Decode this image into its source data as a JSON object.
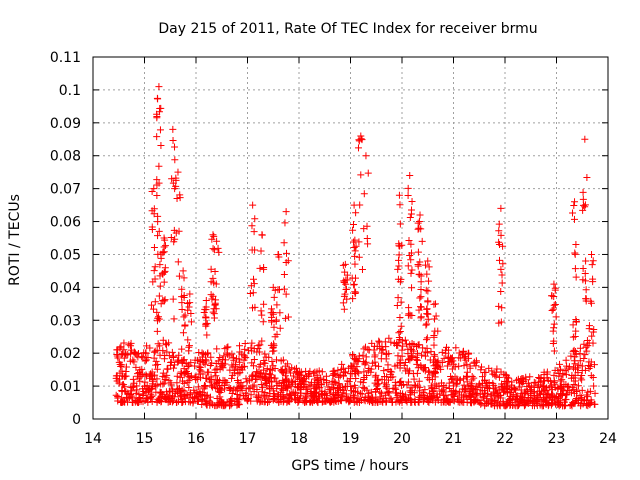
{
  "chart_data": {
    "type": "scatter",
    "title": "Day 215 of 2011, Rate Of TEC Index for receiver brmu",
    "xlabel": "GPS time / hours",
    "ylabel": "ROTI / TECUs",
    "xlim": [
      14,
      24
    ],
    "ylim": [
      0,
      0.11
    ],
    "x_ticks": [
      "14",
      "15",
      "16",
      "17",
      "18",
      "19",
      "20",
      "21",
      "22",
      "23",
      "24"
    ],
    "y_ticks": [
      "0",
      "0.01",
      "0.02",
      "0.03",
      "0.04",
      "0.05",
      "0.06",
      "0.07",
      "0.08",
      "0.09",
      "0.1",
      "0.11"
    ],
    "grid": true,
    "marker": "+",
    "color": "#ff0000",
    "baseline": {
      "x": [
        14.45,
        14.7,
        15.0,
        15.3,
        15.6,
        15.9,
        16.2,
        16.5,
        16.8,
        17.1,
        17.4,
        17.7,
        18.0,
        18.3,
        18.6,
        18.9,
        19.2,
        19.5,
        19.8,
        20.1,
        20.4,
        20.7,
        21.0,
        21.3,
        21.6,
        21.9,
        22.2,
        22.5,
        22.8,
        23.1,
        23.4,
        23.75
      ],
      "lower": [
        0.005,
        0.005,
        0.005,
        0.005,
        0.005,
        0.005,
        0.004,
        0.004,
        0.004,
        0.005,
        0.005,
        0.005,
        0.005,
        0.005,
        0.005,
        0.005,
        0.005,
        0.005,
        0.005,
        0.005,
        0.005,
        0.005,
        0.005,
        0.005,
        0.004,
        0.004,
        0.004,
        0.004,
        0.004,
        0.004,
        0.004,
        0.004
      ],
      "upper": [
        0.022,
        0.024,
        0.022,
        0.025,
        0.022,
        0.021,
        0.02,
        0.022,
        0.022,
        0.024,
        0.02,
        0.018,
        0.015,
        0.015,
        0.014,
        0.018,
        0.022,
        0.024,
        0.026,
        0.025,
        0.022,
        0.02,
        0.024,
        0.02,
        0.016,
        0.015,
        0.012,
        0.013,
        0.016,
        0.018,
        0.022,
        0.026
      ],
      "points_per_segment": 60
    },
    "spikes": [
      {
        "x": 15.28,
        "y_min": 0.025,
        "y_max": 0.101,
        "count": 34
      },
      {
        "x": 15.18,
        "y_min": 0.03,
        "y_max": 0.07,
        "count": 14
      },
      {
        "x": 15.38,
        "y_min": 0.035,
        "y_max": 0.055,
        "count": 16
      },
      {
        "x": 15.55,
        "y_min": 0.03,
        "y_max": 0.088,
        "count": 12
      },
      {
        "x": 15.65,
        "y_min": 0.04,
        "y_max": 0.075,
        "count": 10
      },
      {
        "x": 15.75,
        "y_min": 0.025,
        "y_max": 0.045,
        "count": 12
      },
      {
        "x": 15.88,
        "y_min": 0.02,
        "y_max": 0.038,
        "count": 10
      },
      {
        "x": 16.2,
        "y_min": 0.025,
        "y_max": 0.036,
        "count": 12
      },
      {
        "x": 16.33,
        "y_min": 0.03,
        "y_max": 0.056,
        "count": 14
      },
      {
        "x": 16.4,
        "y_min": 0.03,
        "y_max": 0.054,
        "count": 10
      },
      {
        "x": 17.1,
        "y_min": 0.03,
        "y_max": 0.065,
        "count": 12
      },
      {
        "x": 17.28,
        "y_min": 0.02,
        "y_max": 0.056,
        "count": 12
      },
      {
        "x": 17.5,
        "y_min": 0.02,
        "y_max": 0.04,
        "count": 18
      },
      {
        "x": 17.6,
        "y_min": 0.025,
        "y_max": 0.05,
        "count": 10
      },
      {
        "x": 17.75,
        "y_min": 0.03,
        "y_max": 0.063,
        "count": 10
      },
      {
        "x": 18.9,
        "y_min": 0.033,
        "y_max": 0.047,
        "count": 16
      },
      {
        "x": 19.07,
        "y_min": 0.035,
        "y_max": 0.065,
        "count": 18
      },
      {
        "x": 19.2,
        "y_min": 0.045,
        "y_max": 0.086,
        "count": 10
      },
      {
        "x": 19.3,
        "y_min": 0.05,
        "y_max": 0.08,
        "count": 6
      },
      {
        "x": 19.95,
        "y_min": 0.025,
        "y_max": 0.068,
        "count": 20
      },
      {
        "x": 20.15,
        "y_min": 0.03,
        "y_max": 0.074,
        "count": 20
      },
      {
        "x": 20.35,
        "y_min": 0.03,
        "y_max": 0.062,
        "count": 22
      },
      {
        "x": 20.5,
        "y_min": 0.02,
        "y_max": 0.048,
        "count": 20
      },
      {
        "x": 20.65,
        "y_min": 0.015,
        "y_max": 0.035,
        "count": 16
      },
      {
        "x": 21.92,
        "y_min": 0.025,
        "y_max": 0.064,
        "count": 16
      },
      {
        "x": 22.95,
        "y_min": 0.02,
        "y_max": 0.041,
        "count": 16
      },
      {
        "x": 23.35,
        "y_min": 0.02,
        "y_max": 0.066,
        "count": 16
      },
      {
        "x": 23.55,
        "y_min": 0.03,
        "y_max": 0.085,
        "count": 16
      },
      {
        "x": 23.68,
        "y_min": 0.025,
        "y_max": 0.05,
        "count": 10
      }
    ]
  }
}
